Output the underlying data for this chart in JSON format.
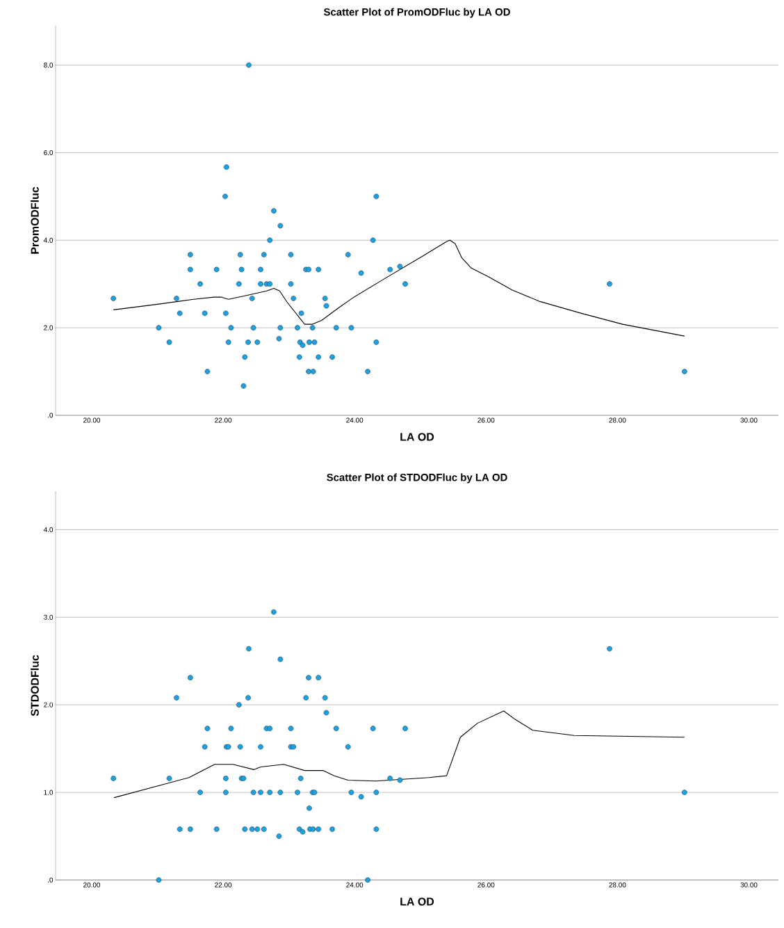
{
  "chart_data": [
    {
      "type": "scatter",
      "title": "Scatter Plot of PromODFluc by   LA OD",
      "xlabel": "LA OD",
      "ylabel": "PromODFluc",
      "grid": "y",
      "xlim": [
        19.45,
        30.45
      ],
      "ylim": [
        0,
        8.9
      ],
      "xticks": [
        {
          "value": 20,
          "label": "20.00"
        },
        {
          "value": 22,
          "label": "22.00"
        },
        {
          "value": 24,
          "label": "24.00"
        },
        {
          "value": 26,
          "label": "26.00"
        },
        {
          "value": 28,
          "label": "28.00"
        },
        {
          "value": 30,
          "label": "30.00"
        }
      ],
      "yticks": [
        {
          "value": 0,
          "label": ".0"
        },
        {
          "value": 2,
          "label": "2.0"
        },
        {
          "value": 4,
          "label": "4.0"
        },
        {
          "value": 6,
          "label": "6.0"
        },
        {
          "value": 8,
          "label": "8.0"
        }
      ],
      "series": [
        {
          "type": "scatter",
          "color": "#1ba1e2",
          "marker": "circle",
          "x": [
            20.33,
            21.02,
            21.18,
            21.29,
            21.34,
            21.5,
            21.5,
            21.65,
            21.72,
            21.76,
            21.9,
            22.03,
            22.05,
            22.04,
            22.08,
            22.12,
            22.24,
            22.26,
            22.28,
            22.31,
            22.33,
            22.38,
            22.39,
            22.44,
            22.46,
            22.52,
            22.57,
            22.57,
            22.62,
            22.66,
            22.71,
            22.71,
            22.77,
            22.85,
            22.87,
            22.87,
            23.03,
            23.03,
            23.07,
            23.13,
            23.16,
            23.17,
            23.19,
            23.21,
            23.26,
            23.3,
            23.3,
            23.31,
            23.36,
            23.37,
            23.39,
            23.45,
            23.45,
            23.55,
            23.57,
            23.66,
            23.72,
            23.9,
            23.95,
            24.1,
            24.2,
            24.28,
            24.33,
            24.33,
            24.54,
            24.69,
            24.77,
            27.88,
            29.02
          ],
          "values": [
            2.67,
            2.0,
            1.67,
            2.67,
            2.33,
            3.67,
            3.33,
            3.0,
            2.33,
            1.0,
            3.33,
            5.0,
            5.67,
            2.33,
            1.67,
            2.0,
            3.0,
            3.67,
            3.33,
            0.67,
            1.33,
            1.67,
            8.0,
            2.67,
            2.0,
            1.67,
            3.33,
            3.0,
            3.67,
            3.0,
            4.0,
            3.0,
            4.67,
            1.75,
            4.33,
            2.0,
            3.67,
            3.0,
            2.67,
            2.0,
            1.33,
            1.67,
            2.33,
            1.6,
            3.33,
            3.33,
            1.0,
            1.67,
            2.0,
            1.0,
            1.67,
            3.33,
            1.33,
            2.67,
            2.5,
            1.33,
            2.0,
            3.67,
            2.0,
            3.25,
            1.0,
            4.0,
            5.0,
            1.67,
            3.33,
            3.4,
            3.0,
            3.0,
            1.0
          ]
        },
        {
          "type": "line",
          "color": "#000000",
          "marker": "none",
          "x": [
            20.33,
            21.02,
            21.55,
            21.86,
            21.97,
            22.08,
            22.39,
            22.66,
            22.77,
            22.86,
            22.97,
            23.24,
            23.36,
            23.5,
            23.76,
            23.97,
            24.5,
            25.03,
            25.4,
            25.45,
            25.53,
            25.63,
            25.77,
            26.03,
            26.4,
            26.82,
            27.45,
            28.08,
            29.02
          ],
          "values": [
            2.41,
            2.54,
            2.65,
            2.7,
            2.7,
            2.65,
            2.75,
            2.84,
            2.9,
            2.84,
            2.59,
            2.08,
            2.08,
            2.17,
            2.46,
            2.68,
            3.16,
            3.63,
            3.97,
            4.0,
            3.92,
            3.6,
            3.37,
            3.17,
            2.86,
            2.6,
            2.33,
            2.08,
            1.81
          ]
        }
      ]
    },
    {
      "type": "scatter",
      "title": "Scatter Plot of STDODFluc by   LA OD",
      "xlabel": "LA OD",
      "ylabel": "STDODFluc",
      "grid": "y",
      "xlim": [
        19.45,
        30.45
      ],
      "ylim": [
        0,
        4.44
      ],
      "xticks": [
        {
          "value": 20,
          "label": "20.00"
        },
        {
          "value": 22,
          "label": "22.00"
        },
        {
          "value": 24,
          "label": "24.00"
        },
        {
          "value": 26,
          "label": "26.00"
        },
        {
          "value": 28,
          "label": "28.00"
        },
        {
          "value": 30,
          "label": "30.00"
        }
      ],
      "yticks": [
        {
          "value": 0,
          "label": ".0"
        },
        {
          "value": 1,
          "label": "1.0"
        },
        {
          "value": 2,
          "label": "2.0"
        },
        {
          "value": 3,
          "label": "3.0"
        },
        {
          "value": 4,
          "label": "4.0"
        }
      ],
      "series": [
        {
          "type": "scatter",
          "color": "#1ba1e2",
          "marker": "circle",
          "x": [
            20.33,
            21.02,
            21.18,
            21.29,
            21.34,
            21.5,
            21.5,
            21.65,
            21.72,
            21.76,
            21.9,
            22.04,
            22.04,
            22.05,
            22.08,
            22.12,
            22.24,
            22.26,
            22.28,
            22.31,
            22.33,
            22.38,
            22.39,
            22.44,
            22.46,
            22.52,
            22.57,
            22.57,
            22.62,
            22.66,
            22.71,
            22.71,
            22.77,
            22.85,
            22.87,
            22.87,
            23.03,
            23.03,
            23.07,
            23.13,
            23.16,
            23.18,
            23.21,
            23.26,
            23.3,
            23.31,
            23.32,
            23.36,
            23.37,
            23.39,
            23.45,
            23.45,
            23.55,
            23.57,
            23.66,
            23.72,
            23.9,
            23.95,
            24.1,
            24.2,
            24.28,
            24.33,
            24.33,
            24.54,
            24.69,
            24.77,
            27.88,
            29.02
          ],
          "values": [
            1.16,
            0.0,
            1.16,
            2.08,
            0.58,
            2.31,
            0.58,
            1.0,
            1.52,
            1.73,
            0.58,
            1.0,
            1.16,
            1.52,
            1.52,
            1.73,
            2.0,
            1.52,
            1.16,
            1.16,
            0.58,
            2.08,
            2.64,
            0.58,
            1.0,
            0.58,
            1.0,
            1.52,
            0.58,
            1.73,
            1.73,
            1.0,
            3.06,
            0.5,
            2.52,
            1.0,
            1.73,
            1.52,
            1.52,
            1.0,
            0.58,
            1.16,
            0.55,
            2.08,
            2.31,
            0.82,
            0.58,
            1.0,
            0.58,
            1.0,
            2.31,
            0.58,
            2.08,
            1.91,
            0.58,
            1.73,
            1.52,
            1.0,
            0.95,
            0.0,
            1.73,
            1.0,
            0.58,
            1.16,
            1.14,
            1.73,
            2.64,
            1.0
          ]
        },
        {
          "type": "line",
          "color": "#000000",
          "marker": "none",
          "x": [
            20.34,
            21.48,
            21.87,
            22.15,
            22.47,
            22.57,
            22.92,
            23.24,
            23.52,
            23.69,
            23.9,
            24.32,
            25.13,
            25.4,
            25.61,
            25.87,
            26.27,
            26.45,
            26.71,
            27.34,
            29.02
          ],
          "values": [
            0.94,
            1.17,
            1.32,
            1.32,
            1.26,
            1.29,
            1.32,
            1.25,
            1.25,
            1.19,
            1.14,
            1.13,
            1.17,
            1.19,
            1.63,
            1.79,
            1.93,
            1.83,
            1.71,
            1.65,
            1.63
          ]
        }
      ]
    }
  ]
}
